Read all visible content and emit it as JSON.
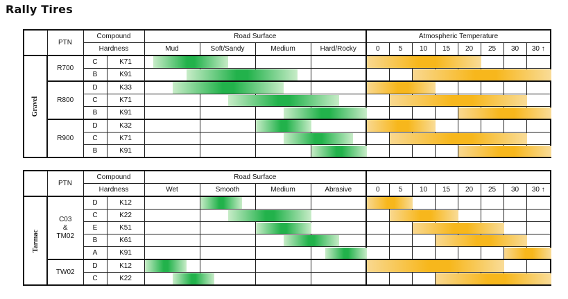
{
  "title": "Rally Tires",
  "headers": {
    "ptn": "PTN",
    "compound": "Compound",
    "hardness": "Hardness",
    "road_surface": "Road Surface",
    "atmospheric_temperature": "Atmospheric Temperature"
  },
  "temperatures": [
    "0",
    "5",
    "10",
    "15",
    "20",
    "25",
    "30",
    "30 ↑"
  ],
  "gravel": {
    "category": "Gravel",
    "surfaces": [
      "Mud",
      "Soft/Sandy",
      "Medium",
      "Hard/Rocky"
    ],
    "groups": [
      {
        "ptn": "R700",
        "rows": [
          {
            "compound": "C",
            "hardness": "K71",
            "road": [
              0.15,
              1.5
            ],
            "temp": [
              0,
              5
            ]
          },
          {
            "compound": "B",
            "hardness": "K91",
            "road": [
              0.75,
              2.75
            ],
            "temp": [
              2,
              8
            ]
          }
        ]
      },
      {
        "ptn": "R800",
        "rows": [
          {
            "compound": "D",
            "hardness": "K33",
            "road": [
              0.5,
              2.5
            ],
            "temp": [
              0,
              3
            ]
          },
          {
            "compound": "C",
            "hardness": "K71",
            "road": [
              1.5,
              3.5
            ],
            "temp": [
              1,
              7
            ]
          },
          {
            "compound": "B",
            "hardness": "K91",
            "road": [
              2.5,
              4
            ],
            "temp": [
              4,
              8
            ]
          }
        ]
      },
      {
        "ptn": "R900",
        "rows": [
          {
            "compound": "D",
            "hardness": "K32",
            "road": [
              2,
              3
            ],
            "temp": [
              0,
              3
            ]
          },
          {
            "compound": "C",
            "hardness": "K71",
            "road": [
              2.5,
              3.75
            ],
            "temp": [
              1,
              7
            ]
          },
          {
            "compound": "B",
            "hardness": "K91",
            "road": [
              3,
              4
            ],
            "temp": [
              4,
              8
            ]
          }
        ]
      }
    ]
  },
  "tarmac": {
    "category": "Tarmac",
    "surfaces": [
      "Wet",
      "Smooth",
      "Medium",
      "Abrasive"
    ],
    "groups": [
      {
        "ptn_lines": [
          "C03",
          "&",
          "TM02"
        ],
        "rows": [
          {
            "compound": "D",
            "hardness": "K12",
            "road": [
              1,
              1.75
            ],
            "temp": [
              0,
              2
            ]
          },
          {
            "compound": "C",
            "hardness": "K22",
            "road": [
              1.5,
              3
            ],
            "temp": [
              1,
              4
            ]
          },
          {
            "compound": "E",
            "hardness": "K51",
            "road": [
              2,
              3
            ],
            "temp": [
              2,
              6
            ]
          },
          {
            "compound": "B",
            "hardness": "K61",
            "road": [
              2.5,
              3.5
            ],
            "temp": [
              3,
              7
            ]
          },
          {
            "compound": "A",
            "hardness": "K91",
            "road": [
              3.25,
              4
            ],
            "temp": [
              6,
              8
            ]
          }
        ]
      },
      {
        "ptn_lines": [
          "TW02"
        ],
        "rows": [
          {
            "compound": "D",
            "hardness": "K12",
            "road": [
              0,
              0.75
            ],
            "temp": [
              0,
              6
            ]
          },
          {
            "compound": "C",
            "hardness": "K22",
            "road": [
              0.5,
              1.25
            ],
            "temp": [
              3,
              8
            ]
          }
        ]
      }
    ]
  }
}
